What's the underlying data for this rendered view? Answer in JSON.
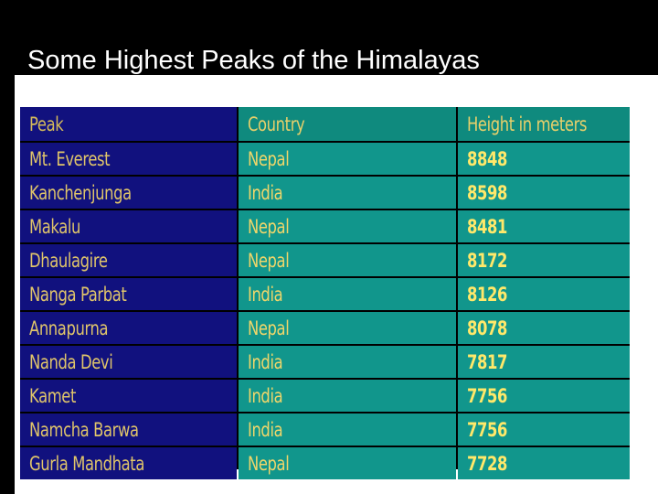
{
  "slide": {
    "title": "Some Highest Peaks of the Himalayas"
  },
  "table": {
    "headers": {
      "peak": "Peak",
      "country": "Country",
      "height": "Height in meters"
    },
    "rows": [
      {
        "peak": "Mt. Everest",
        "country": "Nepal",
        "height": "8848"
      },
      {
        "peak": "Kanchenjunga",
        "country": "India",
        "height": "8598"
      },
      {
        "peak": "Makalu",
        "country": "Nepal",
        "height": "8481"
      },
      {
        "peak": "Dhaulagire",
        "country": "Nepal",
        "height": "8172"
      },
      {
        "peak": "Nanga Parbat",
        "country": "India",
        "height": "8126"
      },
      {
        "peak": "Annapurna",
        "country": "Nepal",
        "height": "8078"
      },
      {
        "peak": "Nanda Devi",
        "country": "India",
        "height": "7817"
      },
      {
        "peak": "Kamet",
        "country": "India",
        "height": "7756"
      },
      {
        "peak": "Namcha Barwa",
        "country": "India",
        "height": "7756"
      },
      {
        "peak": "Gurla Mandhata",
        "country": "Nepal",
        "height": "7728"
      }
    ]
  },
  "colors": {
    "background": "#000000",
    "peak_column": "#11117e",
    "data_columns": "#11968c",
    "text": "#f0d66a"
  }
}
